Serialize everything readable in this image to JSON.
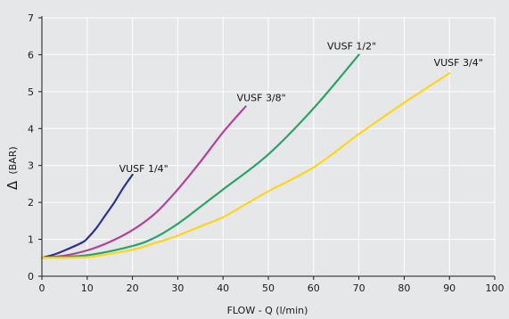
{
  "chart_data": {
    "type": "line",
    "xlabel": "FLOW - Q (l/min)",
    "ylabel_symbol": "Δ",
    "ylabel": "(BAR)",
    "xlim": [
      0,
      100
    ],
    "ylim": [
      0,
      7
    ],
    "xticks": [
      "0",
      "10",
      "20",
      "30",
      "40",
      "50",
      "60",
      "70",
      "80",
      "90",
      "100"
    ],
    "yticks": [
      "0",
      "1",
      "2",
      "3",
      "4",
      "5",
      "6",
      "7"
    ],
    "grid": true,
    "series": [
      {
        "name": "VUSF 1/4\"",
        "color": "#2e3192",
        "x": [
          0,
          3,
          6,
          9,
          10,
          12,
          14,
          16,
          18,
          20
        ],
        "y": [
          0.5,
          0.6,
          0.75,
          0.92,
          1.02,
          1.3,
          1.65,
          2.0,
          2.4,
          2.75
        ]
      },
      {
        "name": "VUSF 3/8\"",
        "color": "#b5409a",
        "x": [
          0,
          5,
          10,
          15,
          20,
          25,
          30,
          35,
          40,
          45
        ],
        "y": [
          0.5,
          0.56,
          0.7,
          0.93,
          1.25,
          1.7,
          2.35,
          3.1,
          3.9,
          4.6
        ]
      },
      {
        "name": "VUSF 1/2\"",
        "color": "#2aa36b",
        "x": [
          0,
          10,
          20,
          25,
          30,
          35,
          40,
          50,
          60,
          70
        ],
        "y": [
          0.5,
          0.57,
          0.82,
          1.05,
          1.42,
          1.88,
          2.35,
          3.3,
          4.55,
          6.0
        ]
      },
      {
        "name": "VUSF 3/4\"",
        "color": "#ffd51a",
        "x": [
          0,
          10,
          20,
          25,
          30,
          35,
          40,
          45,
          50,
          60,
          70,
          80,
          90
        ],
        "y": [
          0.5,
          0.52,
          0.72,
          0.9,
          1.1,
          1.35,
          1.6,
          1.95,
          2.3,
          2.95,
          3.85,
          4.7,
          5.5
        ]
      }
    ]
  }
}
